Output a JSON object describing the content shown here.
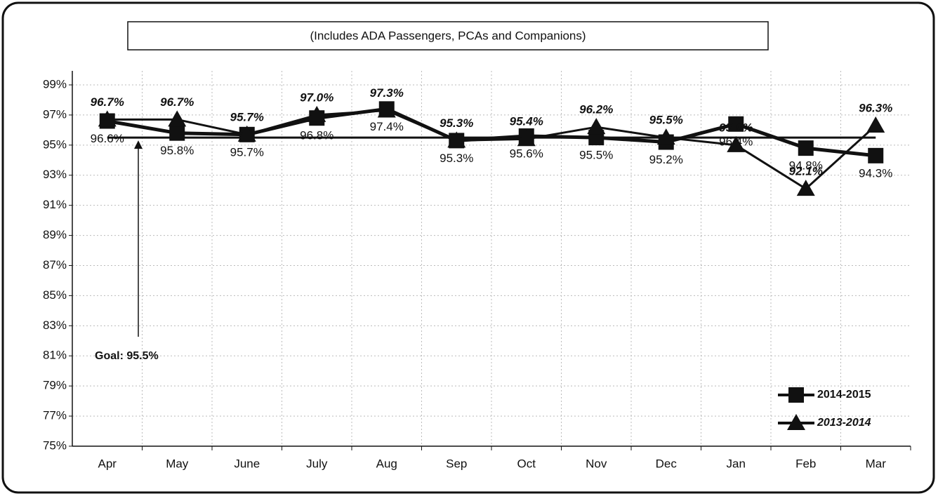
{
  "chart_data": {
    "type": "line",
    "title": "(Includes ADA Passengers, PCAs and Companions)",
    "categories": [
      "Apr",
      "May",
      "June",
      "July",
      "Aug",
      "Sep",
      "Oct",
      "Nov",
      "Dec",
      "Jan",
      "Feb",
      "Mar"
    ],
    "series": [
      {
        "name": "2014-2015",
        "color": "#111111",
        "marker": "square",
        "values": [
          96.6,
          95.8,
          95.7,
          96.8,
          97.4,
          95.3,
          95.6,
          95.5,
          95.2,
          96.4,
          94.8,
          94.3
        ],
        "value_labels": [
          "96.6%",
          "95.8%",
          "95.7%",
          "96.8%",
          "97.4%",
          "95.3%",
          "95.6%",
          "95.5%",
          "95.2%",
          "96.4%",
          "94.8%",
          "94.3%"
        ]
      },
      {
        "name": "2013-2014",
        "color": "#111111",
        "marker": "triangle",
        "values": [
          96.7,
          96.7,
          95.7,
          97.0,
          97.3,
          95.3,
          95.4,
          96.2,
          95.5,
          95.0,
          92.1,
          96.3
        ],
        "value_labels": [
          "96.7%",
          "96.7%",
          "95.7%",
          "97.0%",
          "97.3%",
          "95.3%",
          "95.4%",
          "96.2%",
          "95.5%",
          "95.0%",
          "92.1%",
          "96.3%"
        ]
      }
    ],
    "goal_line": {
      "value": 95.5,
      "label": "Goal: 95.5%"
    },
    "ylim": [
      75,
      99
    ],
    "yticks": [
      {
        "value": 75,
        "label": "75%"
      },
      {
        "value": 77,
        "label": "77%"
      },
      {
        "value": 79,
        "label": "79%"
      },
      {
        "value": 81,
        "label": "81%"
      },
      {
        "value": 83,
        "label": "83%"
      },
      {
        "value": 85,
        "label": "85%"
      },
      {
        "value": 87,
        "label": "87%"
      },
      {
        "value": 89,
        "label": "89%"
      },
      {
        "value": 91,
        "label": "91%"
      },
      {
        "value": 93,
        "label": "93%"
      },
      {
        "value": 95,
        "label": "95%"
      },
      {
        "value": 97,
        "label": "97%"
      },
      {
        "value": 99,
        "label": "99%"
      }
    ],
    "grid": true,
    "legend": "lower right"
  }
}
